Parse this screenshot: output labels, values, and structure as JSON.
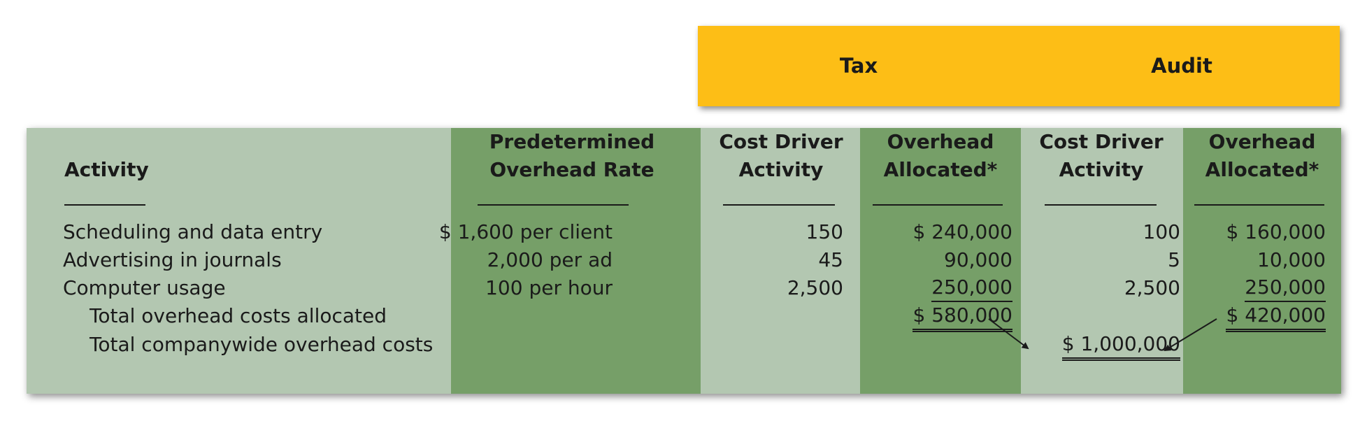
{
  "banner": {
    "tax": "Tax",
    "audit": "Audit"
  },
  "headers": {
    "activity": "Activity",
    "rate": "Predetermined\nOverhead Rate",
    "tax_driver": "Cost Driver\nActivity",
    "tax_alloc": "Overhead\nAllocated*",
    "audit_driver": "Cost Driver\nActivity",
    "audit_alloc": "Overhead\nAllocated*"
  },
  "rows": [
    {
      "activity": "Scheduling and data entry",
      "rate": "$ 1,600 per client",
      "tax_driver": "150",
      "tax_alloc": "$ 240,000",
      "audit_driver": "100",
      "audit_alloc": "$ 160,000"
    },
    {
      "activity": "Advertising in journals",
      "rate": "2,000 per ad",
      "tax_driver": "45",
      "tax_alloc": "90,000",
      "audit_driver": "5",
      "audit_alloc": "10,000"
    },
    {
      "activity": "Computer usage",
      "rate": "100 per hour",
      "tax_driver": "2,500",
      "tax_alloc": "250,000",
      "audit_driver": "2,500",
      "audit_alloc": "250,000"
    }
  ],
  "totals": {
    "allocated_label": "Total overhead costs allocated",
    "tax_total": "$ 580,000",
    "audit_total": "$ 420,000",
    "companywide_label": "Total companywide overhead costs",
    "companywide_total": "$ 1,000,000"
  },
  "colors": {
    "banner": "#fdbe16",
    "light_column": "#b3c7b1",
    "dark_column": "#769f68"
  }
}
